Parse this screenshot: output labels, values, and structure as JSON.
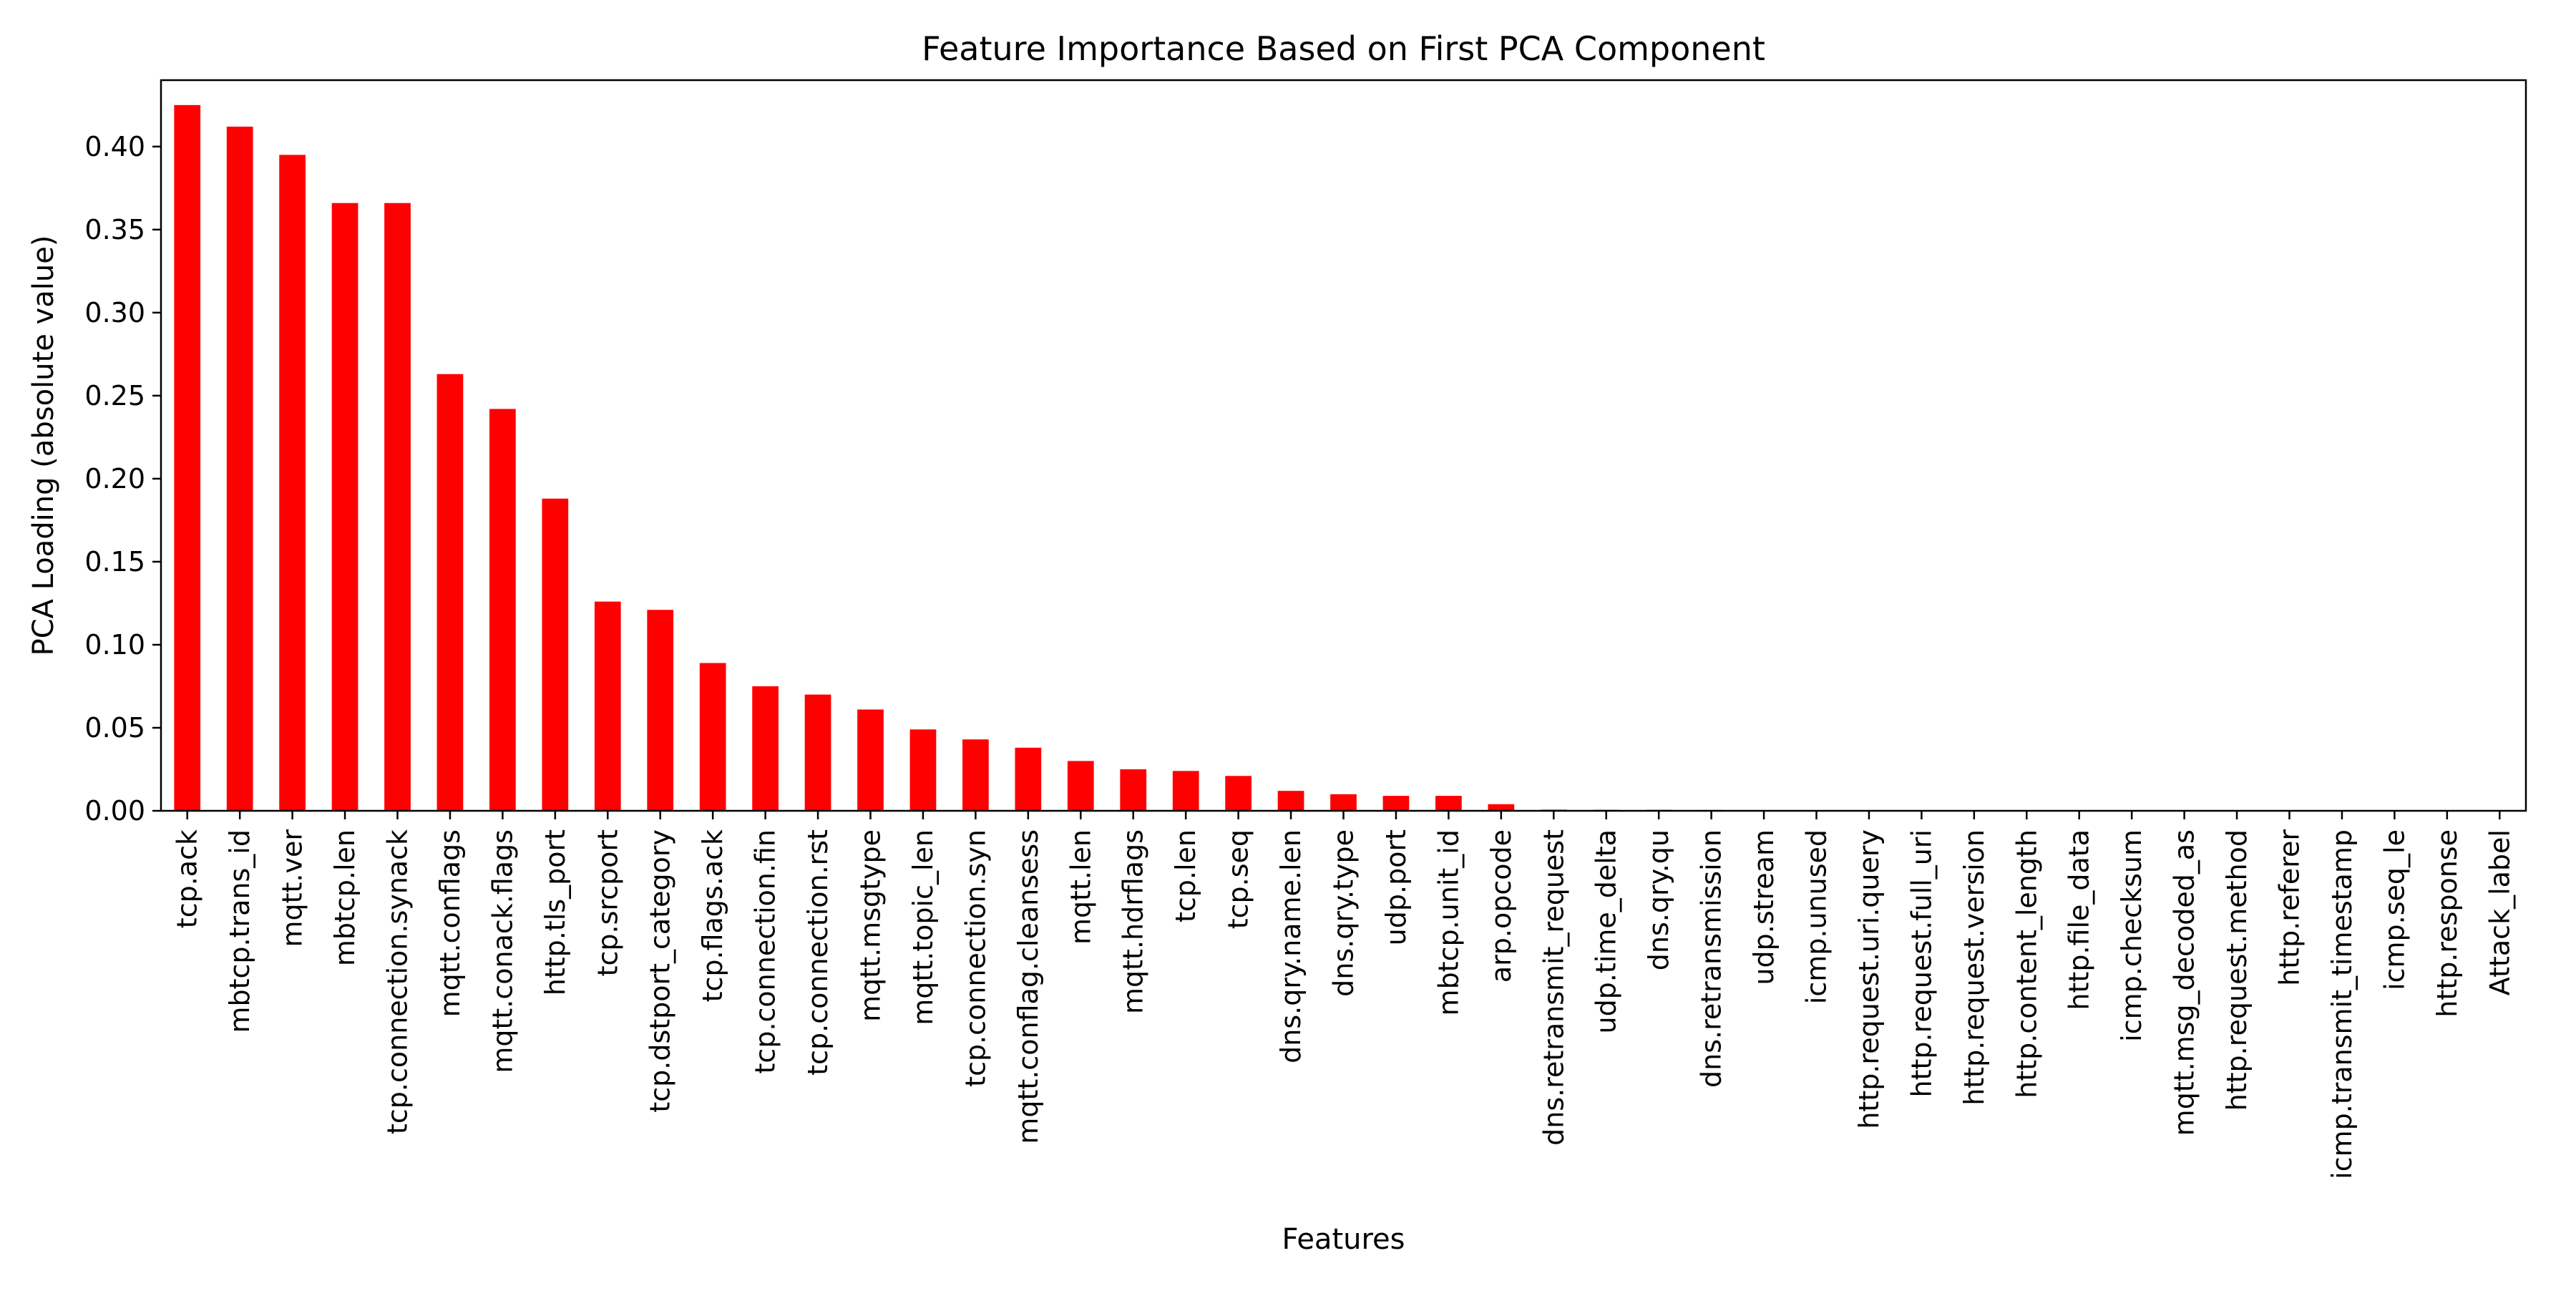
{
  "chart_data": {
    "type": "bar",
    "title": "Feature Importance Based on First PCA Component",
    "xlabel": "Features",
    "ylabel": "PCA Loading (absolute value)",
    "ylim": [
      0,
      0.44
    ],
    "yticks": [
      "0.00",
      "0.05",
      "0.10",
      "0.15",
      "0.20",
      "0.25",
      "0.30",
      "0.35",
      "0.40"
    ],
    "grid": false,
    "legend": "none",
    "colors": {
      "bar": "#ff0000",
      "axis": "#000000",
      "background": "#ffffff"
    },
    "categories": [
      "tcp.ack",
      "mbtcp.trans_id",
      "mqtt.ver",
      "mbtcp.len",
      "tcp.connection.synack",
      "mqtt.conflags",
      "mqtt.conack.flags",
      "http.tls_port",
      "tcp.srcport",
      "tcp.dstport_category",
      "tcp.flags.ack",
      "tcp.connection.fin",
      "tcp.connection.rst",
      "mqtt.msgtype",
      "mqtt.topic_len",
      "tcp.connection.syn",
      "mqtt.conflag.cleansess",
      "mqtt.len",
      "mqtt.hdrflags",
      "tcp.len",
      "tcp.seq",
      "dns.qry.name.len",
      "dns.qry.type",
      "udp.port",
      "mbtcp.unit_id",
      "arp.opcode",
      "dns.retransmit_request",
      "udp.time_delta",
      "dns.qry.qu",
      "dns.retransmission",
      "udp.stream",
      "icmp.unused",
      "http.request.uri.query",
      "http.request.full_uri",
      "http.request.version",
      "http.content_length",
      "http.file_data",
      "icmp.checksum",
      "mqtt.msg_decoded_as",
      "http.request.method",
      "http.referer",
      "icmp.transmit_timestamp",
      "icmp.seq_le",
      "http.response",
      "Attack_label"
    ],
    "values": [
      0.425,
      0.412,
      0.395,
      0.366,
      0.366,
      0.263,
      0.242,
      0.188,
      0.126,
      0.121,
      0.089,
      0.075,
      0.07,
      0.061,
      0.049,
      0.043,
      0.038,
      0.03,
      0.025,
      0.024,
      0.021,
      0.012,
      0.01,
      0.009,
      0.009,
      0.004,
      0.0007,
      0.0006,
      0.0006,
      0.0005,
      0.0004,
      0,
      0,
      0,
      0,
      0,
      0,
      0,
      0,
      0,
      0,
      0,
      0,
      0,
      0
    ]
  }
}
